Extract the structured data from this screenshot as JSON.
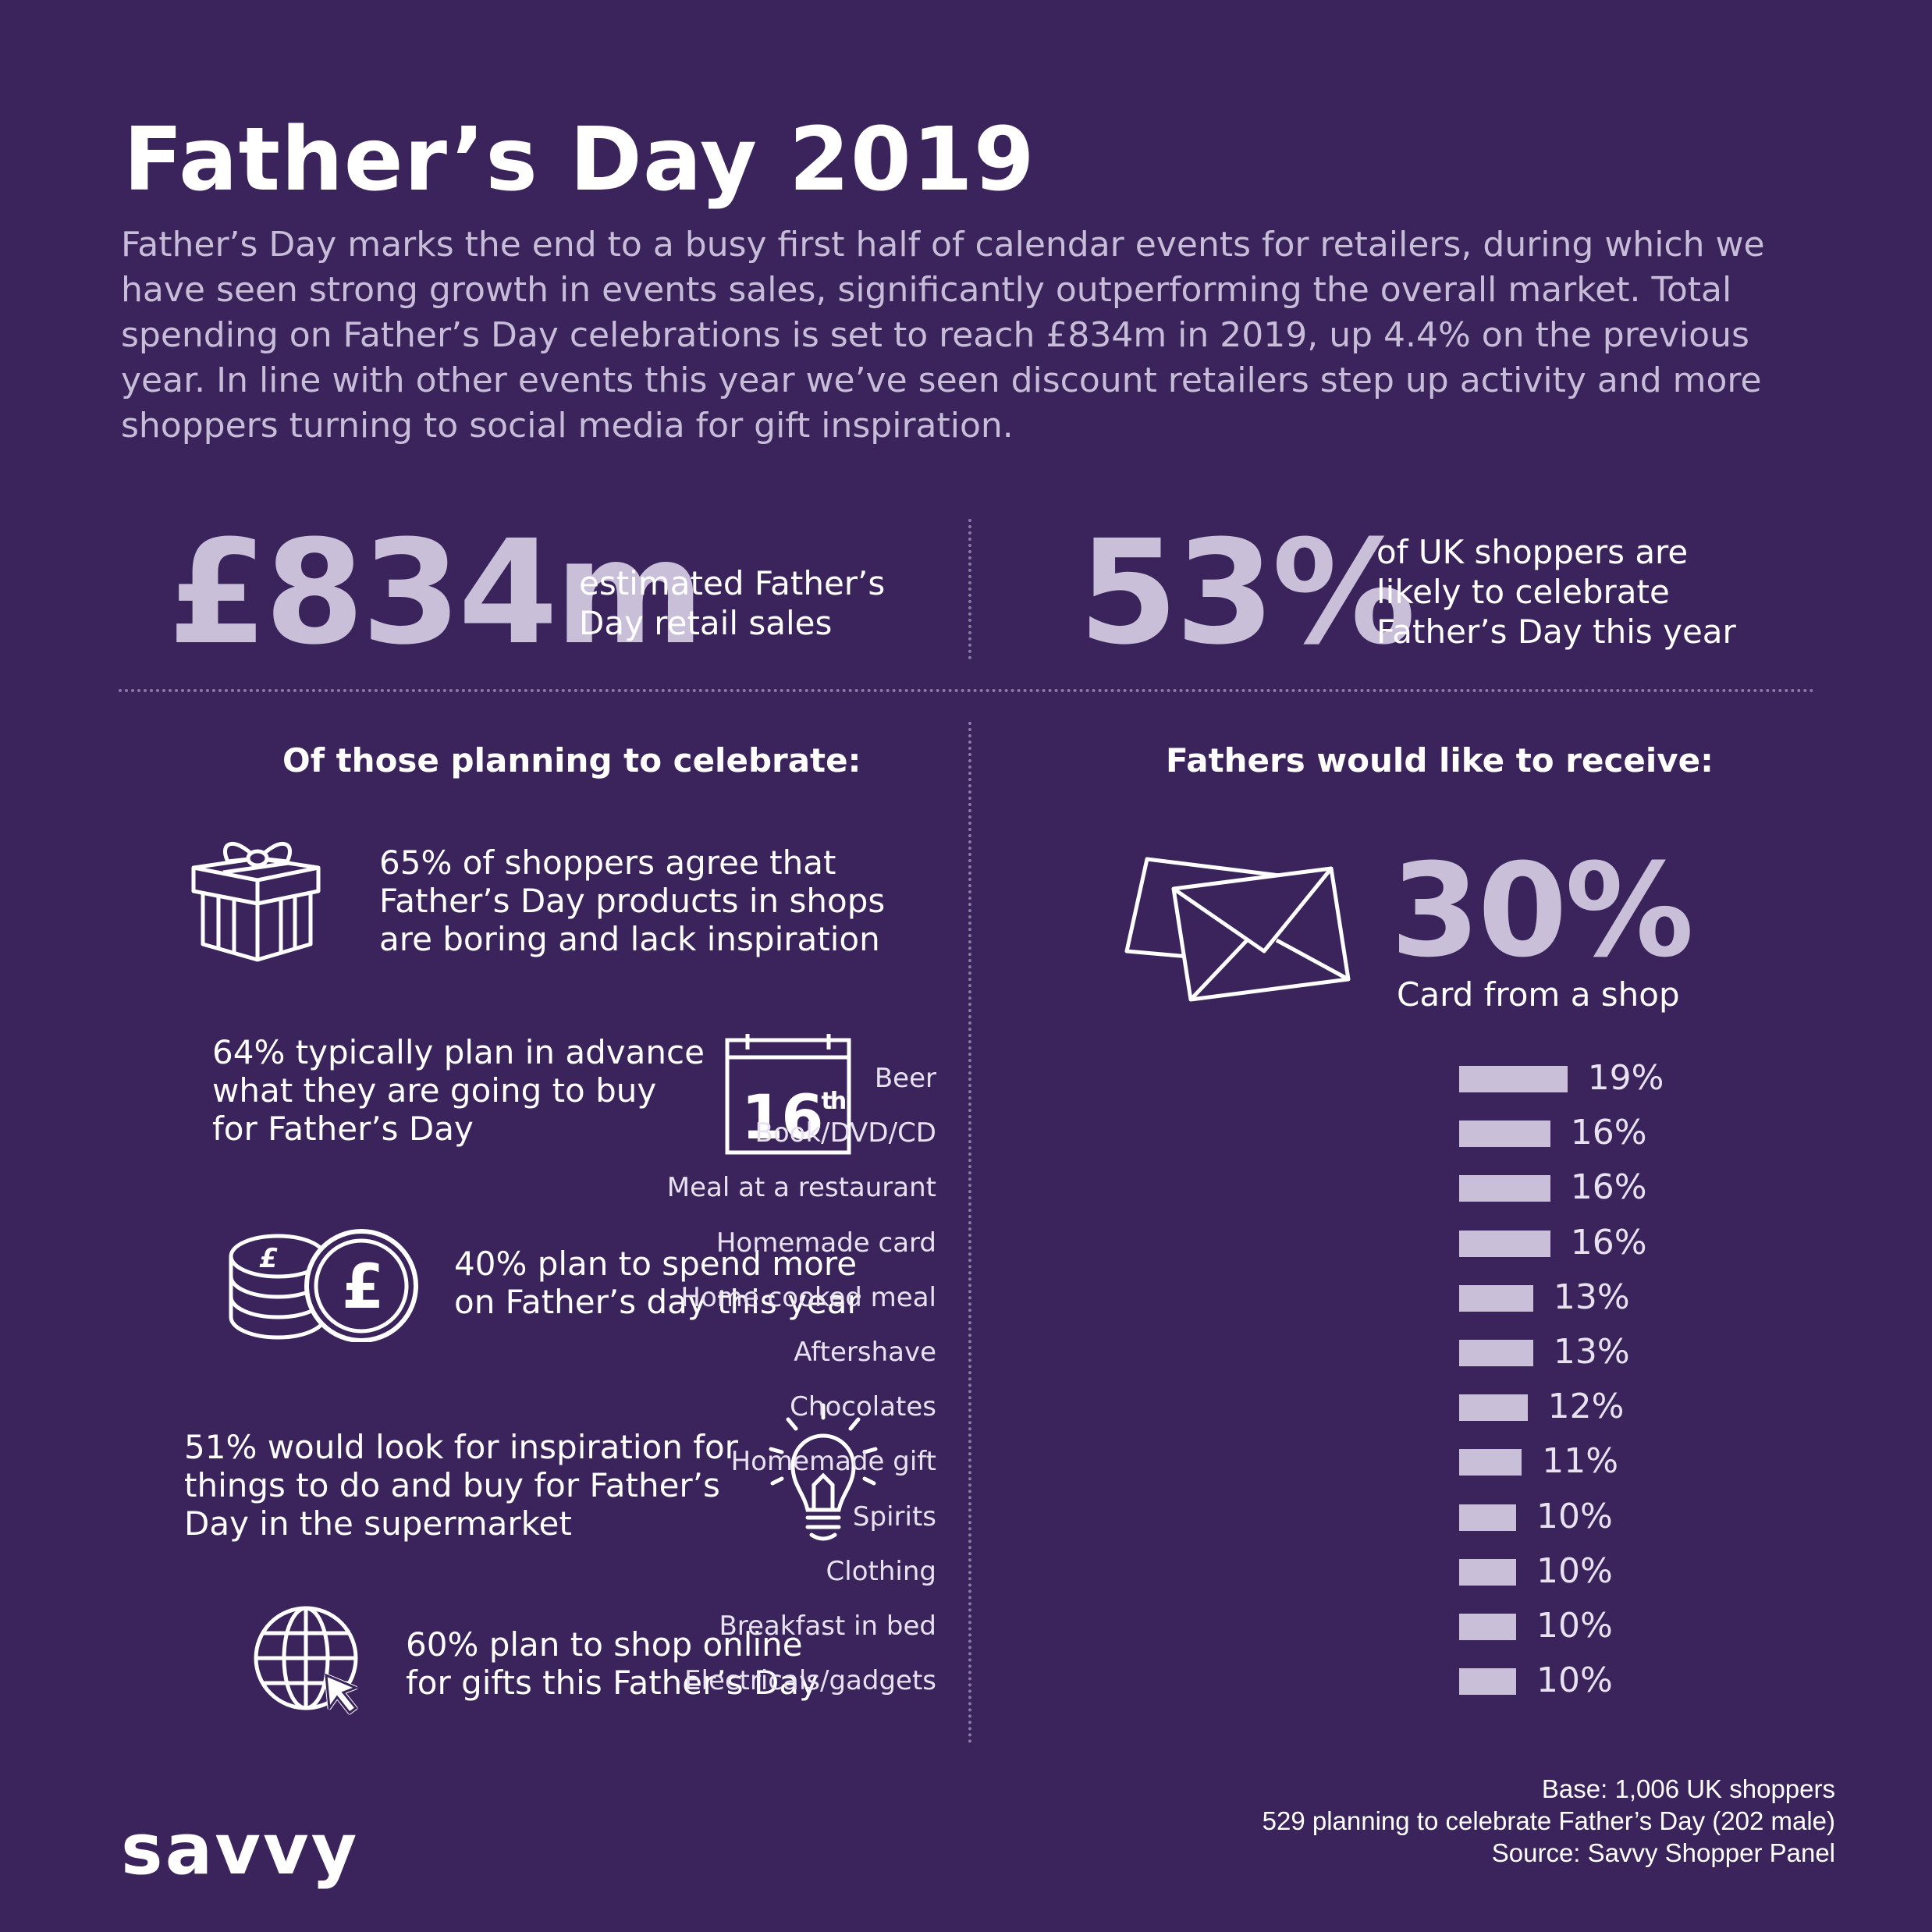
{
  "title": "Father’s Day 2019",
  "intro": "Father’s Day marks the end to a busy first half of calendar events for retailers, during which we have seen strong growth in events sales, significantly outperforming the overall market. Total spending on Father’s Day celebrations is set to reach £834m in 2019, up 4.4% on the previous year. In line with other events this year we’ve seen discount retailers step up activity and more shoppers turning to social media for gift inspiration.",
  "stats": {
    "left": {
      "value": "£834m",
      "label_line1": "estimated Father’s",
      "label_line2": "Day retail sales"
    },
    "right": {
      "value": "53%",
      "label_line1": "of UK shoppers are",
      "label_line2": "likely to celebrate",
      "label_line3": "Father’s Day this year"
    }
  },
  "left_section": {
    "heading": "Of those planning to celebrate:",
    "items": [
      {
        "icon": "gift-icon",
        "line1": "65% of shoppers agree that",
        "line2": "Father’s Day products in shops",
        "line3": "are boring and lack inspiration"
      },
      {
        "icon": "calendar-icon",
        "calendar_text": "16",
        "calendar_sup": "th",
        "line1": "64% typically plan in advance",
        "line2": "what they are going to buy",
        "line3": "for Father’s Day"
      },
      {
        "icon": "coins-icon",
        "line1": "40% plan to spend more",
        "line2": "on Father’s day this year"
      },
      {
        "icon": "lightbulb-icon",
        "line1": "51% would look for inspiration for",
        "line2": "things to do and buy for Father’s",
        "line3": "Day in the supermarket"
      },
      {
        "icon": "globe-cursor-icon",
        "line1": "60% plan to shop online",
        "line2": "for gifts this Father’s Day"
      }
    ]
  },
  "right_section": {
    "heading": "Fathers would like to receive:",
    "featured": {
      "icon": "envelope-icon",
      "value": "30%",
      "label": "Card from a shop"
    }
  },
  "chart_data": {
    "type": "bar",
    "orientation": "horizontal",
    "categories": [
      "Beer",
      "Book/DVD/CD",
      "Meal at a restaurant",
      "Homemade card",
      "Home cooked meal",
      "Aftershave",
      "Chocolates",
      "Homemade gift",
      "Spirits",
      "Clothing",
      "Breakfast in bed",
      "Electricals/gadgets"
    ],
    "values": [
      19,
      16,
      16,
      16,
      13,
      13,
      12,
      11,
      10,
      10,
      10,
      10
    ],
    "value_labels": [
      "19%",
      "16%",
      "16%",
      "16%",
      "13%",
      "13%",
      "12%",
      "11%",
      "10%",
      "10%",
      "10%",
      "10%"
    ],
    "color": "#c9bfd9"
  },
  "footer": {
    "base_line1": "Base: 1,006 UK shoppers",
    "base_line2": "529 planning to celebrate Father’s Day (202 male)",
    "base_line3": "Source: Savvy Shopper Panel",
    "brand": "savvy"
  },
  "colors": {
    "background": "#3a245b",
    "accent": "#c9bfd9",
    "intro_text": "#c8bdd8",
    "divider": "#8a7ba3"
  }
}
